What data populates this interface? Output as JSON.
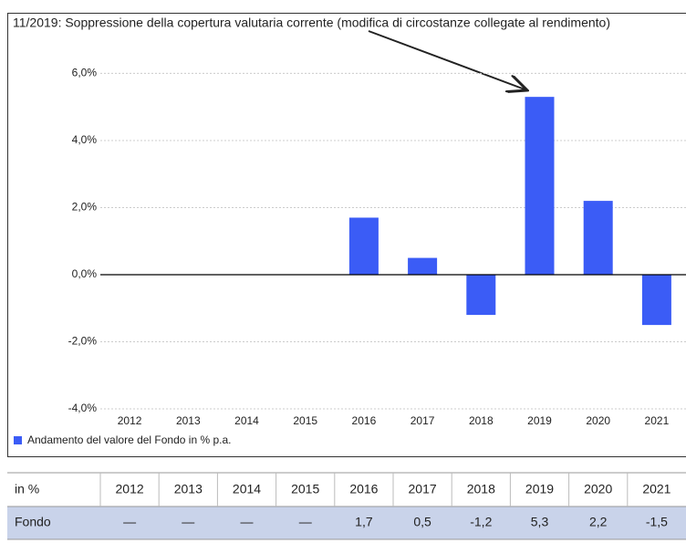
{
  "chart_data": {
    "type": "bar",
    "annotation": "11/2019: Soppressione della copertura valutaria corrente (modifica di circostanze collegate al rendimento)",
    "categories": [
      "2012",
      "2013",
      "2014",
      "2015",
      "2016",
      "2017",
      "2018",
      "2019",
      "2020",
      "2021"
    ],
    "series": [
      {
        "name": "Andamento del valore del Fondo in % p.a.",
        "color": "#3b5cf6",
        "values": [
          null,
          null,
          null,
          null,
          1.7,
          0.5,
          -1.2,
          5.3,
          2.2,
          -1.5
        ],
        "value_labels": [
          "—",
          "—",
          "—",
          "—",
          "1,7",
          "0,5",
          "-1,2",
          "5,3",
          "2,2",
          "-1,5"
        ]
      }
    ],
    "ylim": [
      -4,
      7.1
    ],
    "yticks": [
      {
        "value": -4,
        "label": "-4,0%"
      },
      {
        "value": -2,
        "label": "-2,0%"
      },
      {
        "value": 0,
        "label": "0,0%"
      },
      {
        "value": 2,
        "label": "2,0%"
      },
      {
        "value": 4,
        "label": "4,0%"
      },
      {
        "value": 6,
        "label": "6,0%"
      }
    ],
    "grid": true,
    "table_header": "in %",
    "row_label": "Fondo"
  }
}
